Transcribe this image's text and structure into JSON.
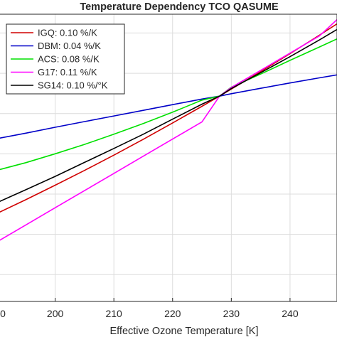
{
  "chart_data": {
    "type": "line",
    "title": "Temperature Dependency TCO QASUME",
    "xlabel": "Effective Ozone Temperature [K]",
    "ylabel": "",
    "xlim": [
      190,
      248
    ],
    "ylim": [
      0.94,
      1.047
    ],
    "x_ticks": [
      "200",
      "210",
      "220",
      "230",
      "240"
    ],
    "x_tick_values": [
      200,
      210,
      220,
      230,
      240
    ],
    "partial_x_tick": "0",
    "y_grid_values": [
      0.95,
      0.965,
      0.98,
      0.995,
      1.01,
      1.025,
      1.04
    ],
    "grid": true,
    "legend_position": "top-left",
    "x": [
      190,
      195,
      200,
      205,
      210,
      215,
      220,
      225,
      228,
      230,
      235,
      240,
      245,
      248
    ],
    "series": [
      {
        "name": "IGQ: 0.10 %/K",
        "color": "#d00000",
        "values": [
          0.9727,
          0.9779,
          0.9833,
          0.9888,
          0.9945,
          1.0004,
          1.0065,
          1.0127,
          1.0165,
          1.0191,
          1.0256,
          1.0323,
          1.0392,
          1.0434
        ]
      },
      {
        "name": "DBM: 0.04 %/K",
        "color": "#0000c8",
        "values": [
          1.0006,
          1.0027,
          1.0049,
          1.007,
          1.0091,
          1.0112,
          1.0133,
          1.0154,
          1.0165,
          1.0174,
          1.0194,
          1.0214,
          1.0233,
          1.0244
        ]
      },
      {
        "name": "ACS: 0.08 %/K",
        "color": "#00e000",
        "values": [
          0.9888,
          0.9917,
          0.995,
          0.9985,
          1.0023,
          1.0063,
          1.0105,
          1.015,
          1.0165,
          1.0198,
          1.0247,
          1.0298,
          1.0348,
          1.0378
        ]
      },
      {
        "name": "G17: 0.11 %/K",
        "color": "#ff00ff",
        "values": [
          0.9621,
          0.9685,
          0.9749,
          0.9813,
          0.9877,
          0.9941,
          1.0005,
          1.0069,
          1.0165,
          1.0197,
          1.0261,
          1.0325,
          1.0389,
          1.045
        ]
      },
      {
        "name": "SG14: 0.10 %/°K",
        "color": "#000000",
        "values": [
          0.9767,
          0.9816,
          0.9866,
          0.9918,
          0.997,
          1.0023,
          1.0079,
          1.0135,
          1.0165,
          1.0193,
          1.0252,
          1.0312,
          1.0374,
          1.0413
        ]
      }
    ]
  }
}
